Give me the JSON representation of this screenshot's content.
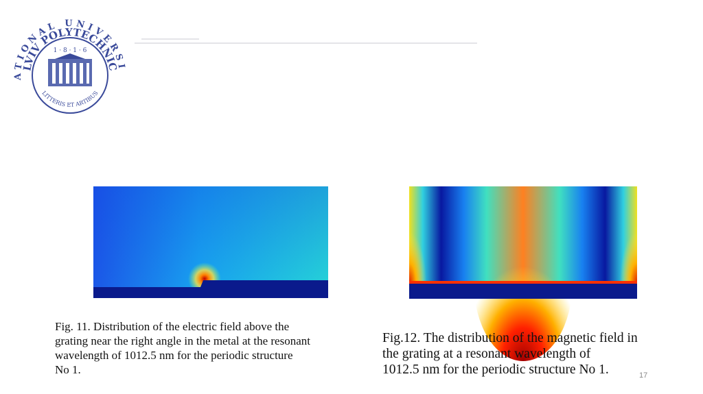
{
  "logo": {
    "top_text": "NATIONAL UNIVERSITY",
    "main_text": "LVIV POLYTECHNIC",
    "year": "1 · 8 · 1 · 6",
    "motto": "LITTERIS ET ARTIBUS"
  },
  "figures": [
    {
      "caption": [
        "Fig. 11. Distribution of the electric field above the",
        "grating near the right angle in the metal at the resonant",
        "wavelength of 1012.5 nm for the periodic structure",
        "No 1."
      ]
    },
    {
      "caption": [
        "Fig.12. The distribution of the magnetic field in",
        "the grating at a resonant wavelength of",
        "1012.5 nm for the periodic structure No 1."
      ]
    }
  ],
  "page_number": "17"
}
